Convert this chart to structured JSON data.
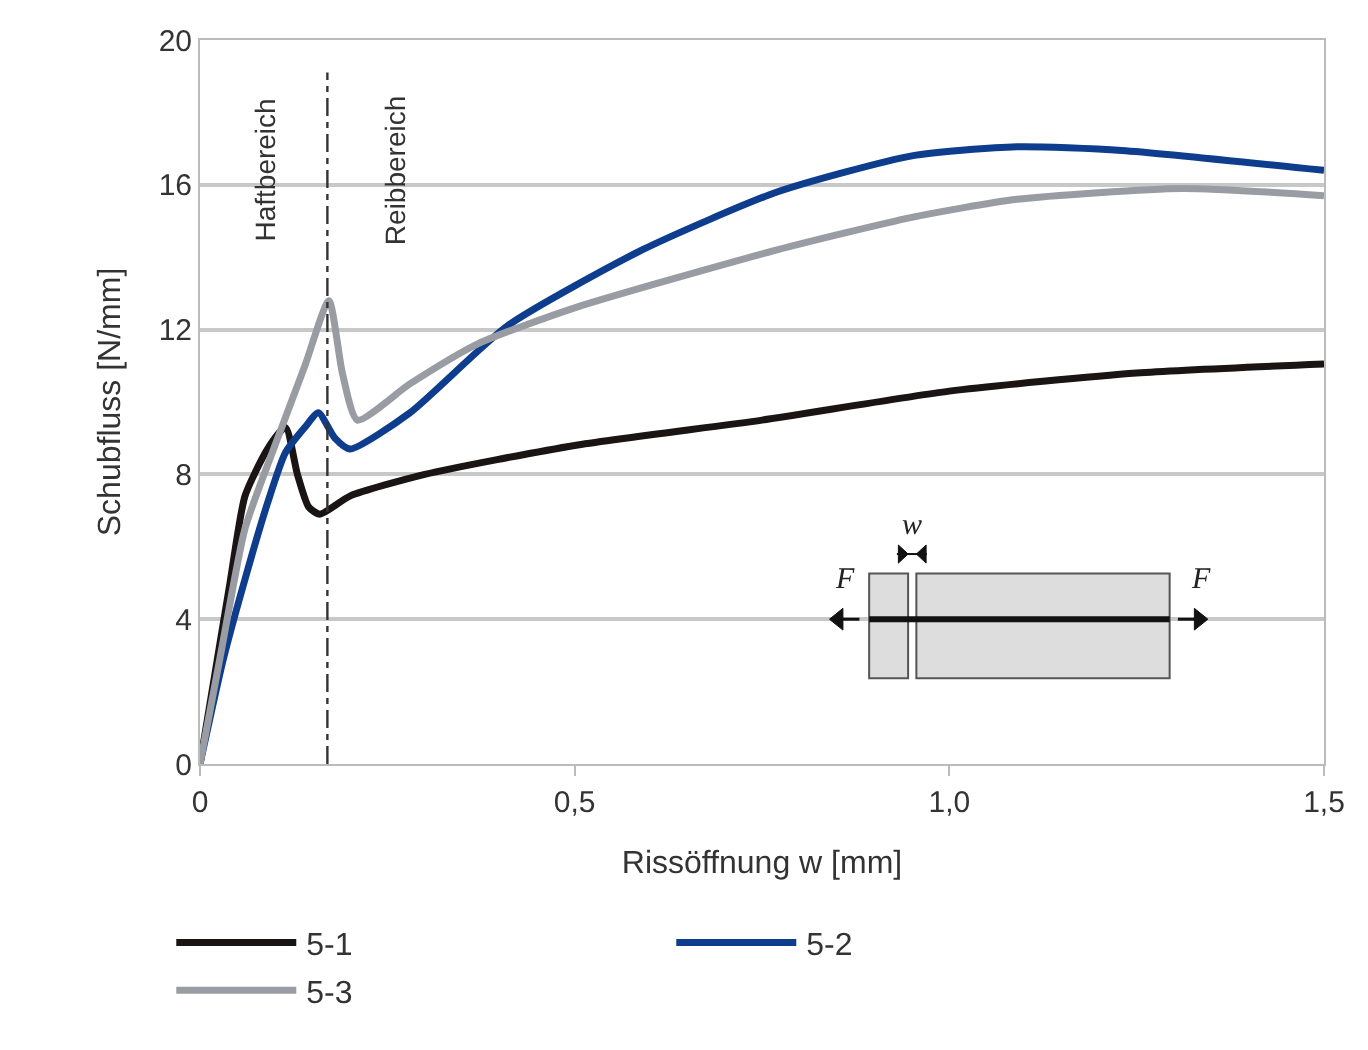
{
  "chart_data": {
    "type": "line",
    "xlabel": "Rissöffnung w [mm]",
    "ylabel": "Schubfluss [N/mm]",
    "xlim": [
      0,
      1.5
    ],
    "xticks": [
      0,
      {
        "value": 0.5,
        "label": "0,5"
      },
      {
        "value": 1.0,
        "label": "1,0"
      },
      {
        "value": 1.5,
        "label": "1,5"
      }
    ],
    "ylim": [
      0,
      20
    ],
    "yticks": [
      0,
      4,
      8,
      12,
      16,
      20
    ],
    "grid": "y",
    "legend": "bottom",
    "marker": "none",
    "line_style": "solid",
    "series": [
      {
        "name": "5-1",
        "color": "#1a1414",
        "x": [
          0,
          0.02,
          0.04,
          0.06,
          0.09,
          0.114,
          0.13,
          0.145,
          0.16,
          0.2,
          0.3,
          0.5,
          0.75,
          1.0,
          1.25,
          1.5
        ],
        "values": [
          0,
          2.5,
          5,
          7.4,
          8.7,
          9.3,
          8.0,
          7.1,
          6.9,
          7.4,
          8.0,
          8.8,
          9.5,
          10.3,
          10.8,
          11.05
        ]
      },
      {
        "name": "5-2",
        "color": "#0d3d8c",
        "x": [
          0,
          0.03,
          0.06,
          0.09,
          0.114,
          0.14,
          0.158,
          0.18,
          0.2,
          0.28,
          0.41,
          0.59,
          0.77,
          0.95,
          1.09,
          1.23,
          1.5
        ],
        "values": [
          0,
          2.8,
          5.1,
          7.2,
          8.6,
          9.3,
          9.7,
          9.0,
          8.7,
          9.7,
          12.1,
          14.2,
          15.8,
          16.8,
          17.05,
          16.95,
          16.4
        ]
      },
      {
        "name": "5-3",
        "color": "#999ca3",
        "x": [
          0,
          0.03,
          0.06,
          0.1,
          0.14,
          0.172,
          0.19,
          0.21,
          0.28,
          0.37,
          0.5,
          0.77,
          0.95,
          1.09,
          1.31,
          1.5
        ],
        "values": [
          0,
          3.3,
          6.5,
          8.8,
          11.0,
          12.8,
          10.8,
          9.5,
          10.5,
          11.6,
          12.6,
          14.2,
          15.1,
          15.6,
          15.9,
          15.7
        ]
      }
    ],
    "ref_lines": [
      {
        "axis": "x",
        "value": 0.17,
        "color": "#333333",
        "line_style": "dashed"
      }
    ],
    "annotations": [
      "Haftbereich",
      "Reibbereich",
      "F",
      "F",
      "w"
    ]
  }
}
